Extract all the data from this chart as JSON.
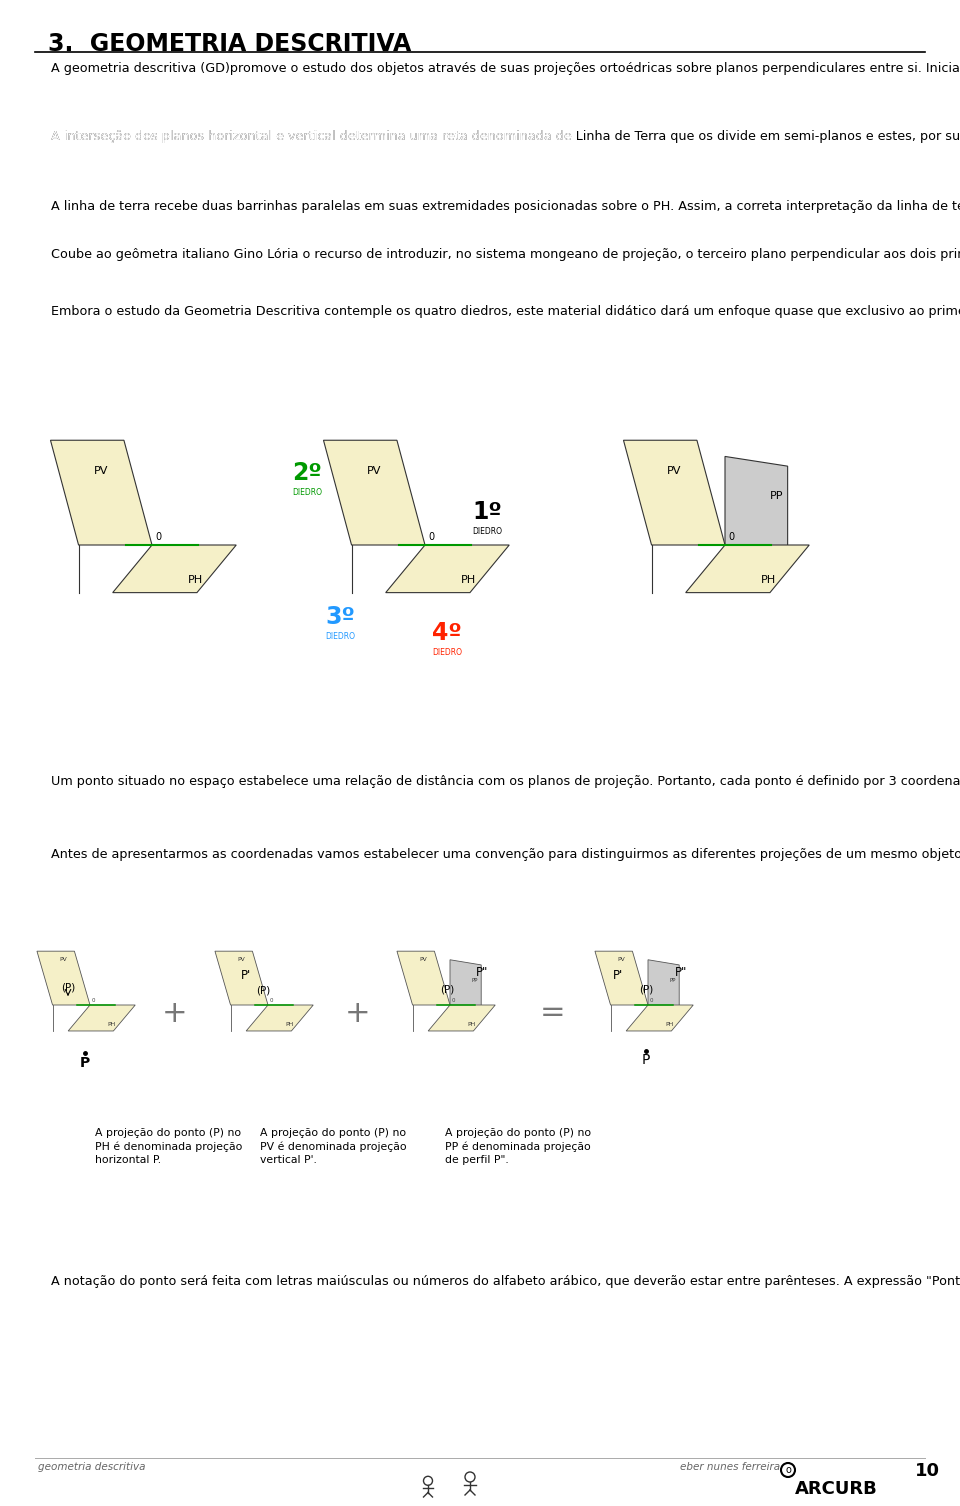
{
  "title": "3.  GEOMETRIA DESCRITIVA",
  "bg_color": "#ffffff",
  "text_color": "#000000",
  "plane_color": "#f5f0c8",
  "plane_edge": "#333333",
  "green_line": "#009900",
  "gray_plane": "#cccccc",
  "diedro_colors": [
    "#009900",
    "#000000",
    "#2299ff",
    "#ff2200"
  ],
  "caption1": "A projeção do ponto (P) no\nPH é denominada projeção\nhorizontal P.",
  "caption2": "A projeção do ponto (P) no\nPV é denominada projeção\nvertical P'.",
  "caption3": "A projeção do ponto (P) no\nPP é denominada projeção\nde perfil P\".",
  "footer_left": "geometria descritiva",
  "footer_right": "eber nunes ferreira",
  "page_num": "10"
}
